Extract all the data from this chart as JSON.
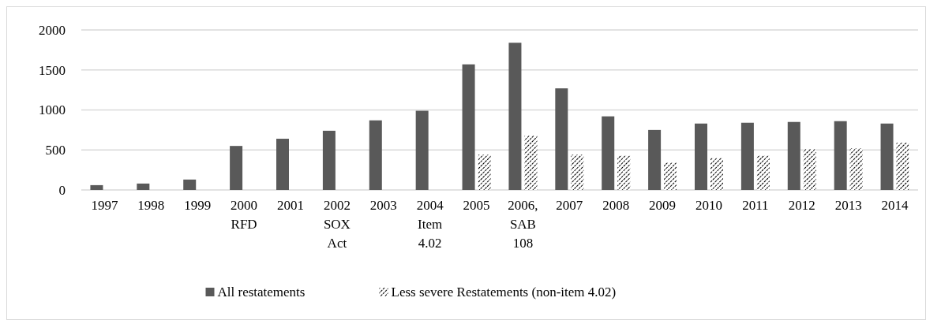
{
  "chart_data": {
    "type": "bar",
    "categories": [
      "1997",
      "1998",
      "1999",
      "2000\nRFD",
      "2001",
      "2002\nSOX\nAct",
      "2003",
      "2004\nItem\n4.02",
      "2005",
      "2006,\nSAB\n108",
      "2007",
      "2008",
      "2009",
      "2010",
      "2011",
      "2012",
      "2013",
      "2014"
    ],
    "series": [
      {
        "name": "All restatements",
        "color": "#595959",
        "values": [
          60,
          80,
          130,
          550,
          640,
          740,
          870,
          990,
          1570,
          1840,
          1270,
          920,
          750,
          830,
          840,
          850,
          860,
          830
        ]
      },
      {
        "name": "Less severe Restatements (non-item 4.02)",
        "color": "#000000",
        "values": [
          null,
          null,
          null,
          null,
          null,
          null,
          null,
          null,
          440,
          680,
          440,
          430,
          340,
          400,
          430,
          510,
          520,
          590
        ]
      }
    ],
    "ylim": [
      0,
      2000
    ],
    "yticks": [
      0,
      500,
      1000,
      1500,
      2000
    ],
    "grid": "y",
    "legend": "bottom"
  }
}
